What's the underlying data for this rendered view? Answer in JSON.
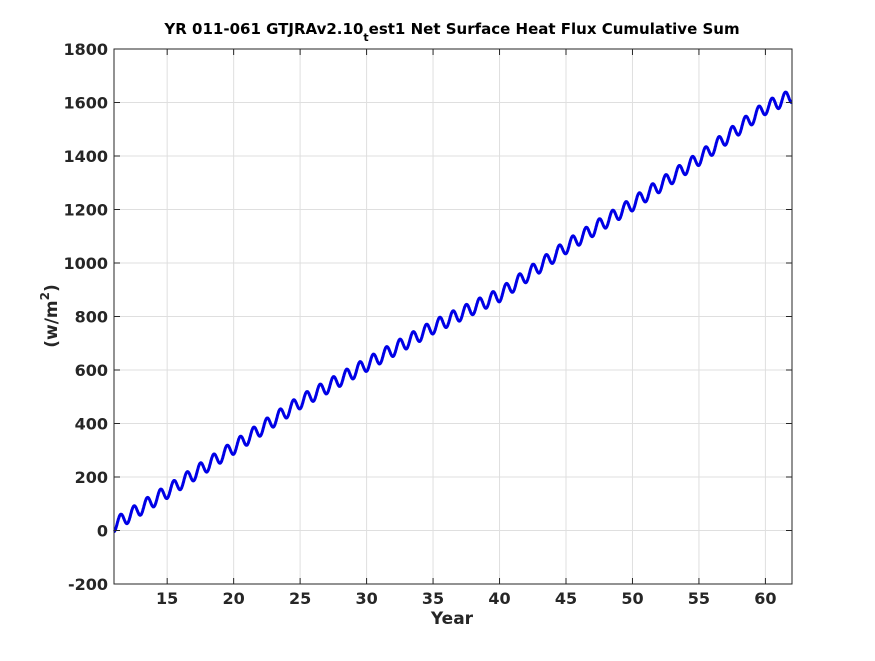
{
  "chart_data": {
    "type": "line",
    "title": {
      "main": "YR 011-061 GTJRAv2.10",
      "subscript": "t",
      "rest": "est1 Net Surface Heat Flux  Cumulative Sum"
    },
    "xlabel": "Year",
    "ylabel": {
      "base": "(w/m",
      "sup": "2",
      "close": ")"
    },
    "xlim": [
      11,
      62
    ],
    "ylim": [
      -200,
      1800
    ],
    "xticks": [
      15,
      20,
      25,
      30,
      35,
      40,
      45,
      50,
      55,
      60
    ],
    "yticks": [
      -200,
      0,
      200,
      400,
      600,
      800,
      1000,
      1200,
      1400,
      1600,
      1800
    ],
    "grid": true,
    "line_color": "#0000e6",
    "series": [
      {
        "trend": {
          "x": [
            11,
            15,
            20,
            25,
            30,
            35,
            40,
            45,
            50,
            55,
            60,
            62
          ],
          "y": [
            20,
            145,
            310,
            480,
            620,
            760,
            880,
            1060,
            1220,
            1390,
            1580,
            1625
          ]
        },
        "seasonal_amplitude": 25,
        "cycles_per_year": 1,
        "samples_per_year": 60
      }
    ]
  }
}
